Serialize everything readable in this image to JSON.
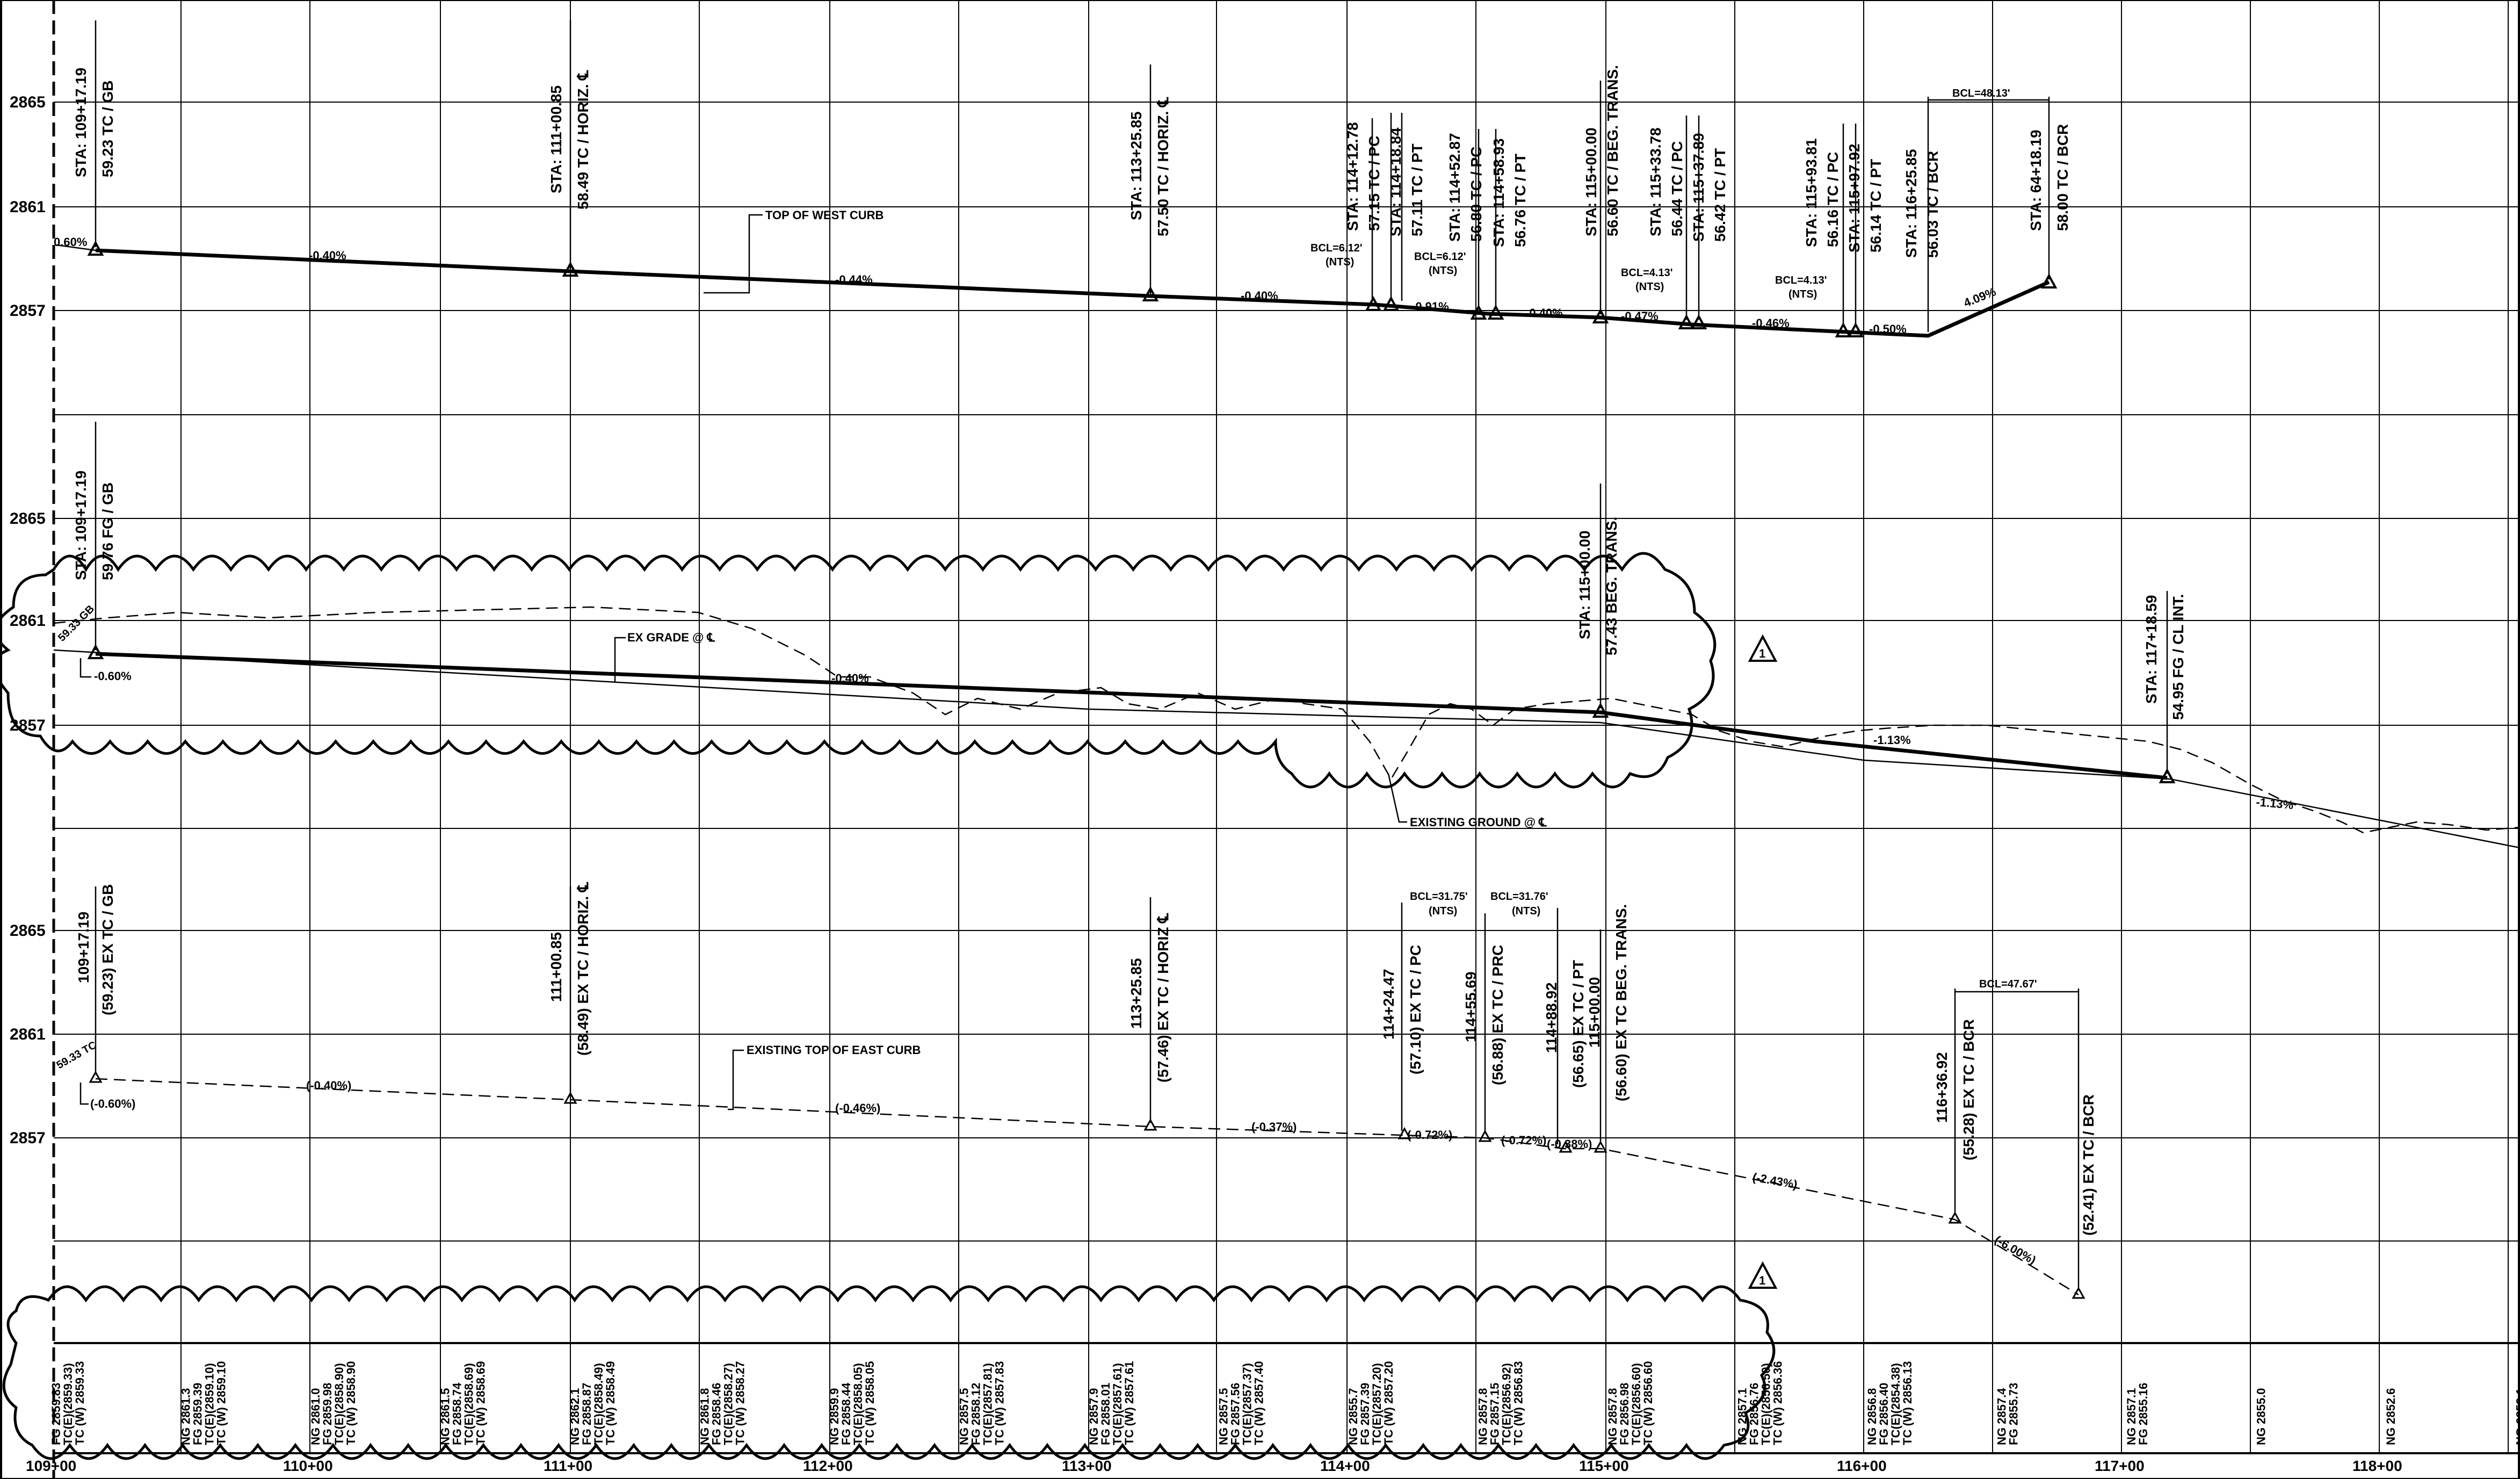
{
  "elevation_labels": [
    {
      "text": "2865"
    },
    {
      "text": "2861"
    },
    {
      "text": "2857"
    },
    {
      "text": "2865"
    },
    {
      "text": "2861"
    },
    {
      "text": "2857"
    },
    {
      "text": "2865"
    },
    {
      "text": "2861"
    },
    {
      "text": "2857"
    }
  ],
  "stations": [
    "109+00",
    "110+00",
    "111+00",
    "112+00",
    "113+00",
    "114+00",
    "115+00",
    "116+00",
    "117+00",
    "118+00"
  ],
  "top_profile": {
    "callout": "TOP OF WEST CURB",
    "grades": [
      "0.60%",
      "-0.40%",
      "-0.44%",
      "-0.40%",
      "-0.91%",
      "-0.40%",
      "-0.47%",
      "-0.46%",
      "-0.50%",
      "4.09%"
    ],
    "bcls": [
      "BCL=6.12'",
      "(NTS)",
      "BCL=6.12'",
      "(NTS)",
      "BCL=4.13'",
      "(NTS)",
      "BCL=4.13'",
      "(NTS)",
      "BCL=48.13'"
    ],
    "notes": [
      {
        "l1": "STA: 109+17.19",
        "l2": "59.23 TC / GB"
      },
      {
        "l1": "STA: 111+00.85",
        "l2": "58.49 TC / HORIZ. ℄"
      },
      {
        "l1": "STA: 113+25.85",
        "l2": "57.50 TC / HORIZ. ℄"
      },
      {
        "l1": "STA: 114+12.78",
        "l2": "57.15 TC / PC"
      },
      {
        "l1": "STA: 114+18.84",
        "l2": "57.11 TC / PT"
      },
      {
        "l1": "STA: 114+52.87",
        "l2": "56.80 TC / PC"
      },
      {
        "l1": "STA: 114+58.93",
        "l2": "56.76 TC / PT"
      },
      {
        "l1": "STA: 115+00.00",
        "l2": "56.60 TC / BEG. TRANS."
      },
      {
        "l1": "STA: 115+33.78",
        "l2": "56.44 TC / PC"
      },
      {
        "l1": "STA: 115+37.89",
        "l2": "56.42 TC / PT"
      },
      {
        "l1": "STA: 115+93.81",
        "l2": "56.16 TC / PC"
      },
      {
        "l1": "STA: 115+97.92",
        "l2": "56.14 TC / PT"
      },
      {
        "l1": "STA: 116+25.85",
        "l2": "56.03 TC / BCR"
      },
      {
        "l1": "STA: 64+18.19",
        "l2": "58.00 TC / BCR"
      }
    ]
  },
  "mid_profile": {
    "callouts": [
      "EX GRADE @ ℄",
      "EXISTING GROUND @ ℄"
    ],
    "grades": [
      "-0.60%",
      "-0.40%",
      "-1.13%",
      "-1.13%"
    ],
    "notes": [
      {
        "l1": "STA: 109+17.19",
        "l2": "59.76 FG / GB"
      },
      {
        "l1": "STA: 115+00.00",
        "l2": "57.43 BEG. TRANS."
      },
      {
        "l1": "STA: 117+18.59",
        "l2": "54.95 FG / CL INT."
      }
    ],
    "edge_text": "59.33 GB"
  },
  "low_profile": {
    "callout": "EXISTING TOP OF EAST CURB",
    "grades": [
      "(-0.60%)",
      "(-0.40%)",
      "(-0.46%)",
      "(-0.37%)",
      "(-0.72%)",
      "(-0.72%)",
      "(-0.38%)",
      "(-2.43%)",
      "(-6.00%)"
    ],
    "bcls": [
      "BCL=31.75'",
      "(NTS)",
      "BCL=31.76'",
      "(NTS)",
      "BCL=47.67'"
    ],
    "notes": [
      {
        "l1": "109+17.19",
        "l2": "(59.23) EX TC / GB"
      },
      {
        "l1": "111+00.85",
        "l2": "(58.49) EX TC / HORIZ. ℄"
      },
      {
        "l1": "113+25.85",
        "l2": "(57.46) EX TC / HORIZ ℄"
      },
      {
        "l1": "114+24.47",
        "l2": "(57.10) EX TC / PC"
      },
      {
        "l1": "114+55.69",
        "l2": "(56.88) EX TC / PRC"
      },
      {
        "l1": "114+88.92",
        "l2": "(56.65) EX TC / PT"
      },
      {
        "l1": "115+00.00",
        "l2": "(56.60) EX TC BEG. TRANS."
      },
      {
        "l1": "116+36.92",
        "l2": "(55.28) EX TC / BCR"
      },
      {
        "l1": "",
        "l2": "(52.41) EX TC / BCR"
      }
    ],
    "edge_text": "59.33 TC"
  },
  "revision_marks": [
    "1",
    "1"
  ],
  "bottom_columns": [
    {
      "a": "FG 2859.83",
      "b": "TC(E)(2859.33)",
      "c": "TC (W) 2859.33"
    },
    {
      "a": "NG 2861.3",
      "b": "FG 2859.39",
      "c": "TC(E)(2859.10)",
      "d": "TC (W) 2859.10"
    },
    {
      "a": "NG 2861.0",
      "b": "FG 2859.98",
      "c": "TC(E)(2858.90)",
      "d": "TC (W) 2858.90"
    },
    {
      "a": "NG 2861.5",
      "b": "FG 2858.74",
      "c": "TC(E)(2858.69)",
      "d": "TC (W) 2858.69"
    },
    {
      "a": "NG 2862.1",
      "b": "FG 2858.87",
      "c": "TC(E)(2858.49)",
      "d": "TC (W) 2858.49"
    },
    {
      "a": "NG 2861.8",
      "b": "FG 2858.46",
      "c": "TC(E)(2858.27)",
      "d": "TC (W) 2858.27"
    },
    {
      "a": "NG 2859.9",
      "b": "FG 2858.44",
      "c": "TC(E)(2858.05)",
      "d": "TC (W) 2858.05"
    },
    {
      "a": "NG 2857.5",
      "b": "FG 2858.12",
      "c": "TC(E)(2857.81)",
      "d": "TC (W) 2857.83"
    },
    {
      "a": "NG 2857.9",
      "b": "FG 2858.01",
      "c": "TC(E)(2857.61)",
      "d": "TC (W) 2857.61"
    },
    {
      "a": "NG 2857.5",
      "b": "FG 2857.56",
      "c": "TC(E)(2857.37)",
      "d": "TC (W) 2857.40"
    },
    {
      "a": "NG 2855.7",
      "b": "FG 2857.39",
      "c": "TC(E)(2857.20)",
      "d": "TC (W) 2857.20"
    },
    {
      "a": "NG 2857.8",
      "b": "FG 2857.15",
      "c": "TC(E)(2856.92)",
      "d": "TC (W) 2856.83"
    },
    {
      "a": "NG 2857.8",
      "b": "FG 2856.98",
      "c": "TC(E)(2856.60)",
      "d": "TC (W) 2856.60"
    },
    {
      "a": "NG 2857.1",
      "b": "FG 2856.76",
      "c": "TC(E)(2856.50)",
      "d": "TC (W) 2856.36"
    },
    {
      "a": "NG 2856.8",
      "b": "FG 2856.40",
      "c": "TC(E)(2854.38)",
      "d": "TC (W) 2856.13"
    },
    {
      "a": "NG 2857.4",
      "b": "FG 2855.73"
    },
    {
      "a": "NG 2857.1",
      "b": "FG 2855.16"
    },
    {
      "a": "NG 2855.0"
    },
    {
      "a": "NG 2852.6"
    },
    {
      "a": "NG 2853.1"
    }
  ]
}
